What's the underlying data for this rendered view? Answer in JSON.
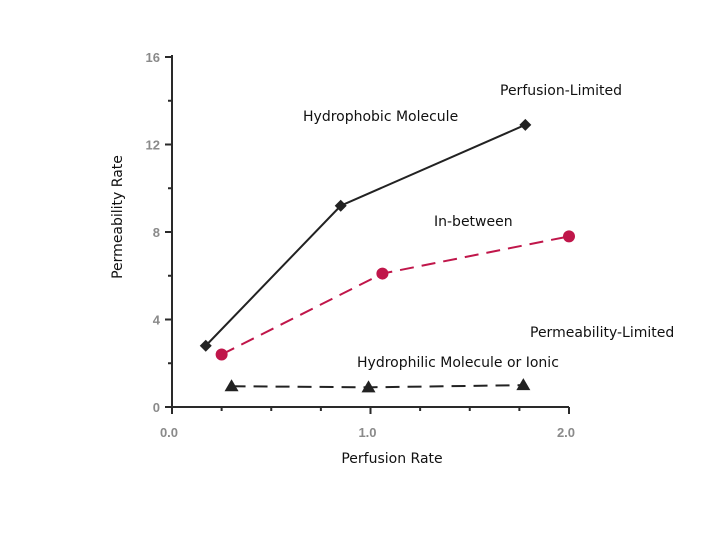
{
  "chart_data": {
    "type": "line",
    "xlabel": "Perfusion Rate",
    "ylabel": "Permeability Rate",
    "xlim": [
      0.0,
      2.0
    ],
    "ylim": [
      0,
      16
    ],
    "x_ticks": [
      "0.0",
      "1.0",
      "2.0"
    ],
    "y_ticks": [
      "0",
      "4",
      "8",
      "12",
      "16"
    ],
    "grid": false,
    "series": [
      {
        "key": "hydrophobic",
        "marker": "diamond",
        "line_style": "solid",
        "color": "#222222",
        "points": [
          {
            "x": 0.17,
            "y": 2.8
          },
          {
            "x": 0.85,
            "y": 9.2
          },
          {
            "x": 1.78,
            "y": 12.9
          }
        ]
      },
      {
        "key": "in-between",
        "marker": "circle",
        "line_style": "dashed",
        "color": "#c0164a",
        "points": [
          {
            "x": 0.25,
            "y": 2.4
          },
          {
            "x": 1.06,
            "y": 6.1
          },
          {
            "x": 2.0,
            "y": 7.8
          }
        ]
      },
      {
        "key": "hydrophilic",
        "marker": "triangle",
        "line_style": "dashed",
        "color": "#222222",
        "points": [
          {
            "x": 0.3,
            "y": 0.95
          },
          {
            "x": 0.99,
            "y": 0.9
          },
          {
            "x": 1.77,
            "y": 1.0
          }
        ]
      }
    ],
    "annotations": {
      "perfusion_limited": "Perfusion-Limited",
      "hydrophobic": "Hydrophobic Molecule",
      "in_between": "In-between",
      "permeability_limited": "Permeability-Limited",
      "hydrophilic": "Hydrophilic Molecule or Ionic"
    }
  }
}
